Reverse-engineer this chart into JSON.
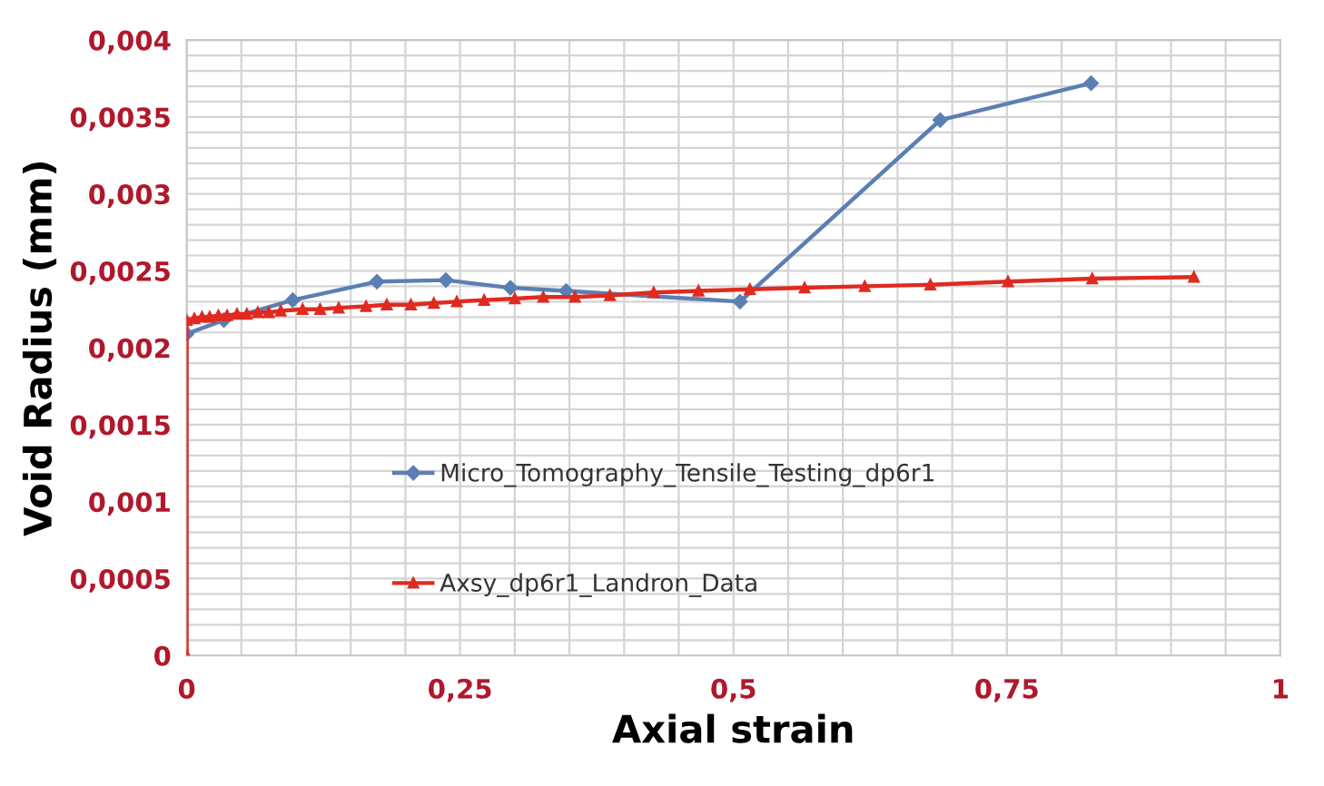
{
  "chart_data": {
    "type": "line",
    "xlabel": "Axial strain",
    "ylabel": "Void Radius (mm)",
    "series": [
      {
        "name": "Micro_Tomography_Tensile_Testing_dp6r1",
        "color": "#5b7fb3",
        "marker": "diamond",
        "x": [
          0,
          0.034,
          0.097,
          0.174,
          0.237,
          0.296,
          0.347,
          0.506,
          0.689,
          0.827
        ],
        "values": [
          0.00209,
          0.00218,
          0.00231,
          0.00243,
          0.00244,
          0.00239,
          0.00237,
          0.0023,
          0.00348,
          0.00372
        ]
      },
      {
        "name": "Axsy_dp6r1_Landron_Data",
        "color": "#e02a20",
        "marker": "triangle",
        "x": [
          0,
          0,
          0.007,
          0.014,
          0.021,
          0.029,
          0.037,
          0.046,
          0.055,
          0.065,
          0.075,
          0.086,
          0.106,
          0.122,
          0.139,
          0.164,
          0.183,
          0.205,
          0.226,
          0.247,
          0.272,
          0.3,
          0.326,
          0.355,
          0.387,
          0.427,
          0.468,
          0.515,
          0.565,
          0.62,
          0.68,
          0.751,
          0.828,
          0.921
        ],
        "values": [
          0,
          0.00218,
          0.00219,
          0.0022,
          0.0022,
          0.00221,
          0.00221,
          0.00222,
          0.00222,
          0.00223,
          0.00223,
          0.00224,
          0.00225,
          0.00225,
          0.00226,
          0.00227,
          0.00228,
          0.00228,
          0.00229,
          0.0023,
          0.00231,
          0.00232,
          0.00233,
          0.00233,
          0.00234,
          0.00236,
          0.00237,
          0.00238,
          0.00239,
          0.0024,
          0.00241,
          0.00243,
          0.00245,
          0.00246
        ]
      }
    ],
    "xlim": [
      0,
      1
    ],
    "xticks": [
      0,
      {
        "value": 0.05,
        "label": null
      },
      {
        "value": 0.1,
        "label": null
      },
      {
        "value": 0.15,
        "label": null
      },
      {
        "value": 0.2,
        "label": null
      },
      {
        "value": 0.25,
        "label": "0,25"
      },
      {
        "value": 0.3,
        "label": null
      },
      {
        "value": 0.35,
        "label": null
      },
      {
        "value": 0.4,
        "label": null
      },
      {
        "value": 0.45,
        "label": null
      },
      {
        "value": 0.5,
        "label": "0,5"
      },
      {
        "value": 0.55,
        "label": null
      },
      {
        "value": 0.6,
        "label": null
      },
      {
        "value": 0.65,
        "label": null
      },
      {
        "value": 0.7,
        "label": null
      },
      {
        "value": 0.75,
        "label": "0,75"
      },
      {
        "value": 0.8,
        "label": null
      },
      {
        "value": 0.85,
        "label": null
      },
      {
        "value": 0.9,
        "label": null
      },
      {
        "value": 0.95,
        "label": null
      },
      1
    ],
    "ylim": [
      0,
      0.004
    ],
    "yticks": [
      0,
      {
        "value": 0.0001,
        "label": null
      },
      {
        "value": 0.0002,
        "label": null
      },
      {
        "value": 0.0003,
        "label": null
      },
      {
        "value": 0.0004,
        "label": null
      },
      {
        "value": 0.0005,
        "label": "0,0005"
      },
      {
        "value": 0.0006,
        "label": null
      },
      {
        "value": 0.0007,
        "label": null
      },
      {
        "value": 0.0008,
        "label": null
      },
      {
        "value": 0.0009,
        "label": null
      },
      {
        "value": 0.001,
        "label": "0,001"
      },
      {
        "value": 0.0011,
        "label": null
      },
      {
        "value": 0.0012,
        "label": null
      },
      {
        "value": 0.0013,
        "label": null
      },
      {
        "value": 0.0014,
        "label": null
      },
      {
        "value": 0.0015,
        "label": "0,0015"
      },
      {
        "value": 0.0016,
        "label": null
      },
      {
        "value": 0.0017,
        "label": null
      },
      {
        "value": 0.0018,
        "label": null
      },
      {
        "value": 0.0019,
        "label": null
      },
      {
        "value": 0.002,
        "label": "0,002"
      },
      {
        "value": 0.0021,
        "label": null
      },
      {
        "value": 0.0022,
        "label": null
      },
      {
        "value": 0.0023,
        "label": null
      },
      {
        "value": 0.0024,
        "label": null
      },
      {
        "value": 0.0025,
        "label": "0,0025"
      },
      {
        "value": 0.0026,
        "label": null
      },
      {
        "value": 0.0027,
        "label": null
      },
      {
        "value": 0.0028,
        "label": null
      },
      {
        "value": 0.0029,
        "label": null
      },
      {
        "value": 0.003,
        "label": "0,003"
      },
      {
        "value": 0.0031,
        "label": null
      },
      {
        "value": 0.0032,
        "label": null
      },
      {
        "value": 0.0033,
        "label": null
      },
      {
        "value": 0.0034,
        "label": null
      },
      {
        "value": 0.0035,
        "label": "0,0035"
      },
      {
        "value": 0.0036,
        "label": null
      },
      {
        "value": 0.0037,
        "label": null
      },
      {
        "value": 0.0038,
        "label": null
      },
      {
        "value": 0.0039,
        "label": null
      },
      {
        "value": 0.004,
        "label": "0,004"
      }
    ],
    "grid": true,
    "legend": "bottom left",
    "line_style": "solid"
  }
}
